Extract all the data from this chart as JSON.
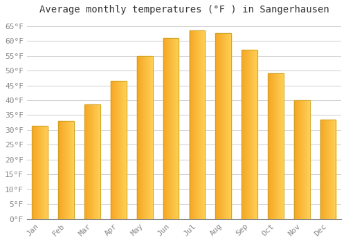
{
  "title": "Average monthly temperatures (°F ) in Sangerhausen",
  "months": [
    "Jan",
    "Feb",
    "Mar",
    "Apr",
    "May",
    "Jun",
    "Jul",
    "Aug",
    "Sep",
    "Oct",
    "Nov",
    "Dec"
  ],
  "values": [
    31.5,
    33.0,
    38.5,
    46.5,
    55.0,
    61.0,
    63.5,
    62.5,
    57.0,
    49.0,
    40.0,
    33.5
  ],
  "ylim": [
    0,
    67
  ],
  "yticks": [
    0,
    5,
    10,
    15,
    20,
    25,
    30,
    35,
    40,
    45,
    50,
    55,
    60,
    65
  ],
  "ytick_labels": [
    "0°F",
    "5°F",
    "10°F",
    "15°F",
    "20°F",
    "25°F",
    "30°F",
    "35°F",
    "40°F",
    "45°F",
    "50°F",
    "55°F",
    "60°F",
    "65°F"
  ],
  "bar_color_left": "#F5A623",
  "bar_color_right": "#FFD966",
  "bar_color_mid": "#FFC03A",
  "bar_edge_color": "#C8A020",
  "background_color": "#ffffff",
  "plot_bg_color": "#ffffff",
  "grid_color": "#cccccc",
  "title_fontsize": 10,
  "tick_fontsize": 8,
  "title_color": "#333333",
  "tick_color": "#888888",
  "bar_width": 0.6
}
